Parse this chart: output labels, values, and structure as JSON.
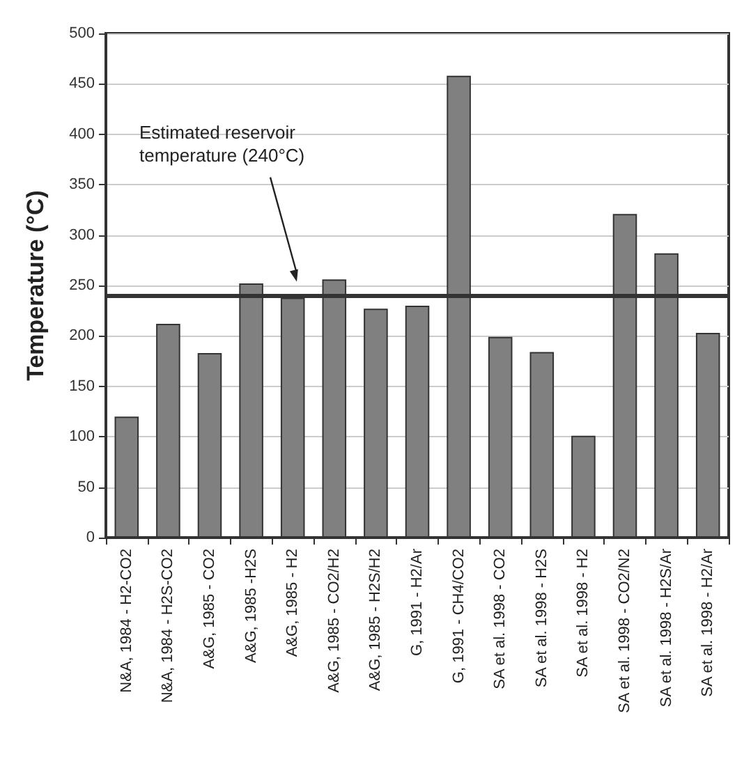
{
  "chart_data": {
    "type": "bar",
    "ylabel": "Temperature (°C)",
    "categories": [
      "N&A, 1984 - H2-CO2",
      "N&A, 1984 - H2S-CO2",
      "A&G, 1985 - CO2",
      "A&G, 1985 -H2S",
      "A&G, 1985 - H2",
      "A&G, 1985 - CO2/H2",
      "A&G, 1985 - H2S/H2",
      "G, 1991 - H2/Ar",
      "G, 1991 - CH4/CO2",
      "SA et al. 1998 - CO2",
      "SA et al. 1998 - H2S",
      "SA et al. 1998 - H2",
      "SA et al. 1998 - CO2/N2",
      "SA et al. 1998 - H2S/Ar",
      "SA et al. 1998 - H2/Ar"
    ],
    "values": [
      120,
      212,
      183,
      252,
      238,
      256,
      227,
      230,
      458,
      199,
      184,
      101,
      321,
      282,
      203
    ],
    "color": "#808080",
    "ylim": [
      0,
      500
    ],
    "yticks": [
      0,
      50,
      100,
      150,
      200,
      250,
      300,
      350,
      400,
      450,
      500
    ],
    "grid": "y",
    "ref_lines": [
      {
        "axis": "y",
        "value": 240,
        "label": "Estimated reservoir temperature (240°C)",
        "color": "#333333"
      }
    ]
  }
}
